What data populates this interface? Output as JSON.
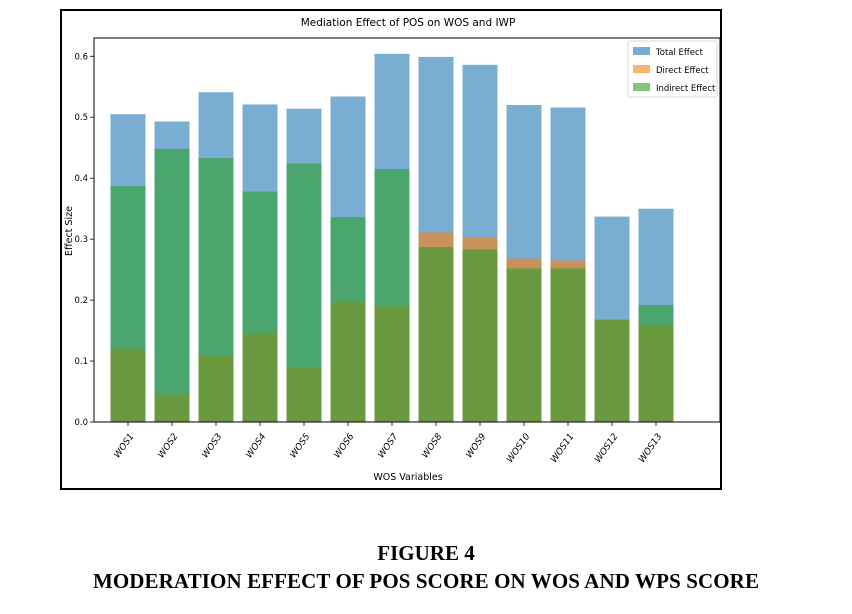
{
  "figure": {
    "number_label": "FIGURE 4",
    "caption": "MODERATION EFFECT OF POS SCORE ON WOS AND WPS SCORE"
  },
  "chart_data": {
    "type": "bar",
    "title": "Mediation Effect of POS on WOS and IWP",
    "xlabel": "WOS Variables",
    "ylabel": "Effect Size",
    "ylim": [
      0,
      0.63
    ],
    "yticks": [
      0.0,
      0.1,
      0.2,
      0.3,
      0.4,
      0.5,
      0.6
    ],
    "ytick_labels": [
      "0.0",
      "0.1",
      "0.2",
      "0.3",
      "0.4",
      "0.5",
      "0.6"
    ],
    "grid": false,
    "legend_position": "top-right",
    "categories": [
      "WOS1",
      "WOS2",
      "WOS3",
      "WOS4",
      "WOS5",
      "WOS6",
      "WOS7",
      "WOS8",
      "WOS9",
      "WOS10",
      "WOS11",
      "WOS12",
      "WOS13"
    ],
    "series": [
      {
        "name": "Total Effect",
        "color": "#1f77b4",
        "opacity": 0.6,
        "values": [
          0.505,
          0.493,
          0.541,
          0.521,
          0.514,
          0.534,
          0.604,
          0.599,
          0.586,
          0.52,
          0.516,
          0.337,
          0.35
        ]
      },
      {
        "name": "Direct Effect",
        "color": "#ff7f0e",
        "opacity": 0.6,
        "values": [
          0.12,
          0.045,
          0.11,
          0.145,
          0.09,
          0.198,
          0.19,
          0.311,
          0.303,
          0.268,
          0.265,
          0.168,
          0.158
        ]
      },
      {
        "name": "Indirect Effect",
        "color": "#2ca02c",
        "opacity": 0.6,
        "values": [
          0.387,
          0.448,
          0.433,
          0.378,
          0.424,
          0.336,
          0.415,
          0.287,
          0.283,
          0.252,
          0.252,
          0.168,
          0.192
        ]
      }
    ]
  }
}
